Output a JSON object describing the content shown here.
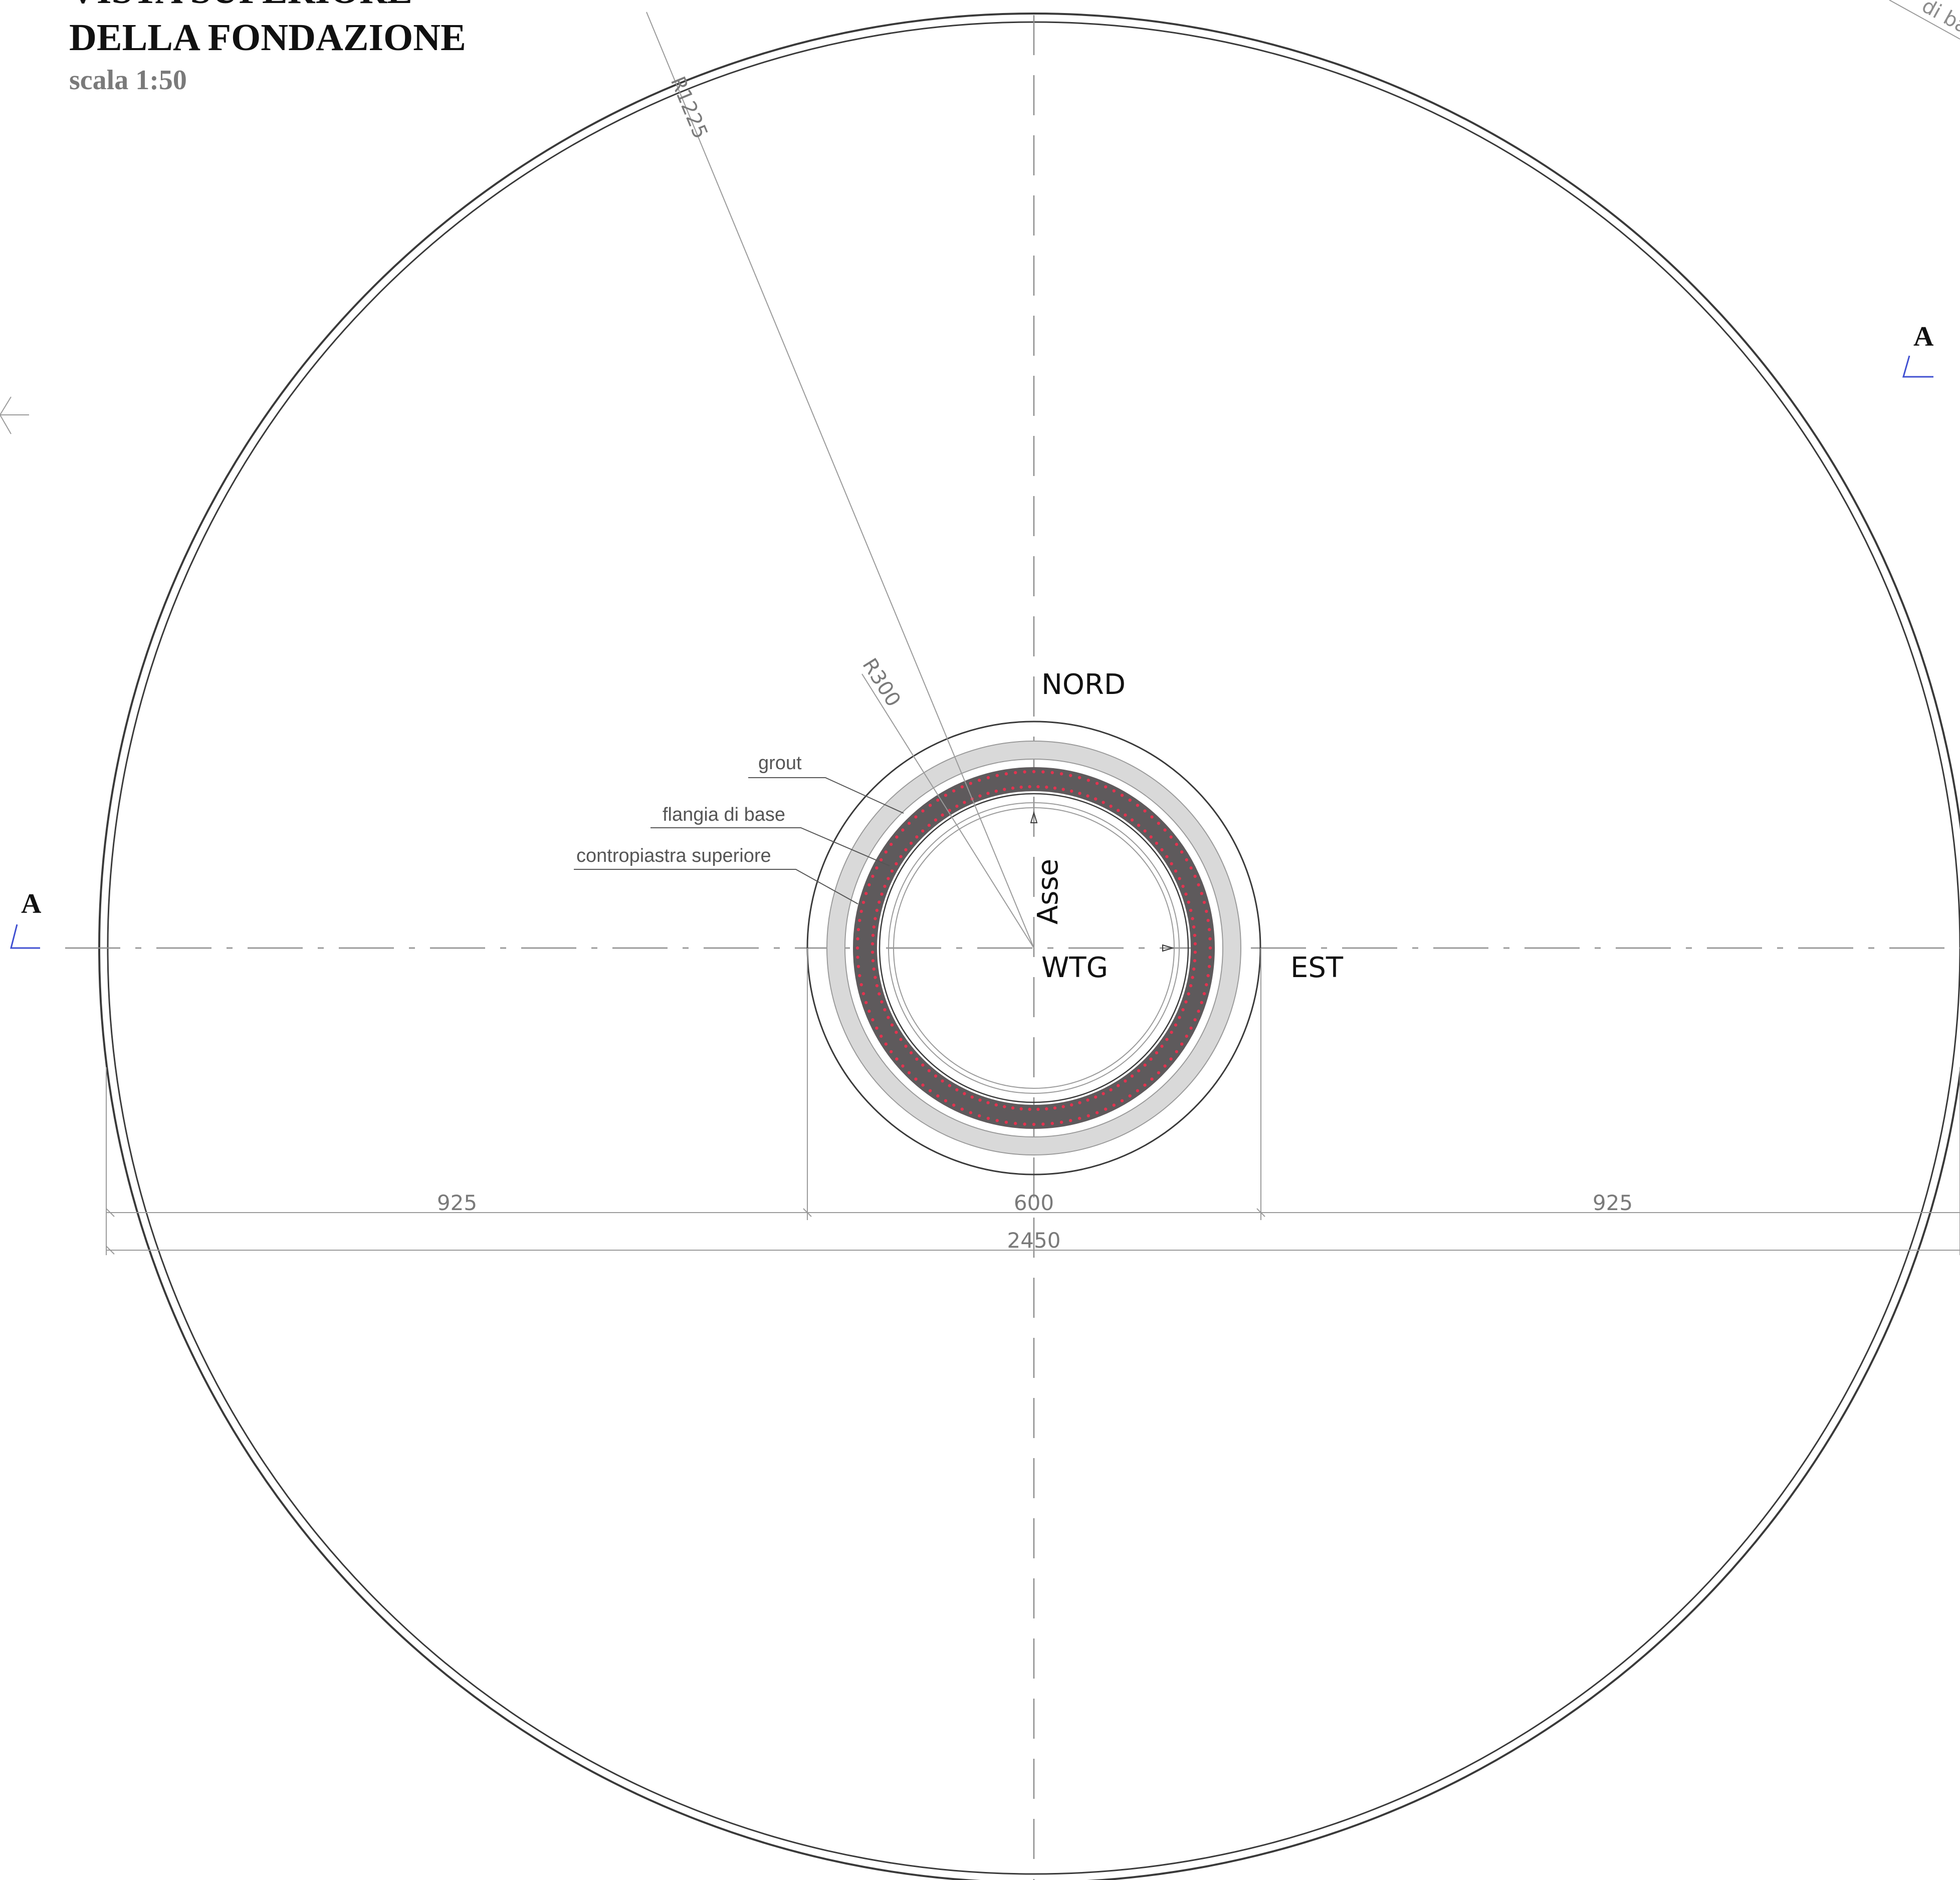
{
  "title": {
    "line1": "VISTA SUPERIORE",
    "line2": "DELLA FONDAZIONE",
    "scale": "scala 1:50"
  },
  "section_marks": {
    "left": "A",
    "right": "A"
  },
  "directions": {
    "north": "NORD",
    "east": "EST"
  },
  "axis_label": {
    "vertical": "Asse",
    "horizontal": "WTG"
  },
  "radii": {
    "outer": "R1225",
    "inner": "R300"
  },
  "leaders": {
    "grout": "grout",
    "flange": "flangia di base",
    "counterplate": "contropiastra superiore",
    "corner_fragment": "di ba"
  },
  "dimensions": {
    "left": "925",
    "center": "600",
    "right": "925",
    "total": "2450"
  },
  "colors": {
    "line": "#3a3a3a",
    "thin": "#9a9a9a",
    "axis": "#8c8c8c",
    "flange": "#5e5a5c",
    "bolt": "#e2334f",
    "grout": "#d9d9d9",
    "section_mark": "#3f4fd1",
    "title_gray": "#7a7a7a"
  },
  "bolt_ring": {
    "count": 120
  }
}
